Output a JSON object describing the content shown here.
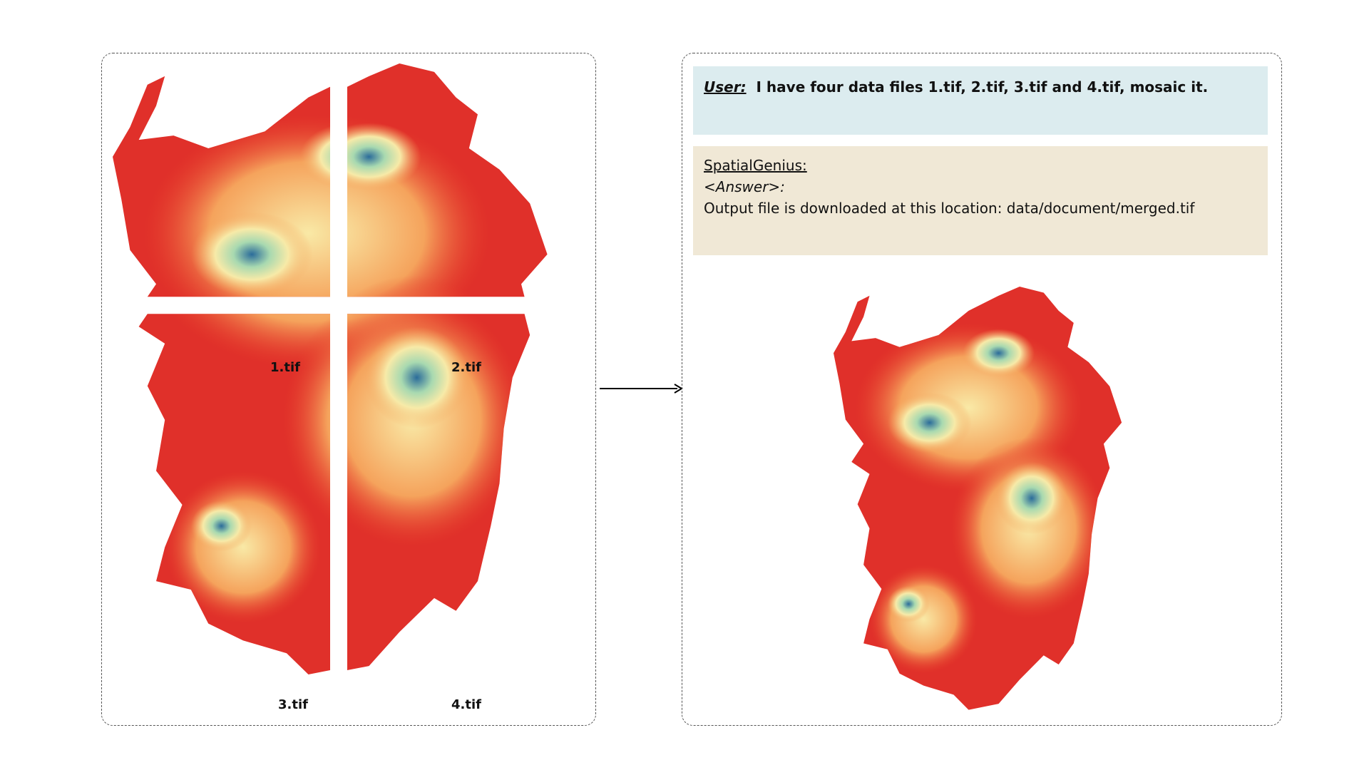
{
  "left_panel": {
    "tiles": [
      "1.tif",
      "2.tif",
      "3.tif",
      "4.tif"
    ]
  },
  "right_panel": {
    "user": {
      "label": "User:",
      "text": "I have four data files 1.tif, 2.tif, 3.tif and 4.tif, mosaic it."
    },
    "assistant": {
      "name": "SpatialGenius:",
      "tag": "<Answer>:",
      "text": "Output file is downloaded at this location: data/document/merged.tif"
    }
  }
}
